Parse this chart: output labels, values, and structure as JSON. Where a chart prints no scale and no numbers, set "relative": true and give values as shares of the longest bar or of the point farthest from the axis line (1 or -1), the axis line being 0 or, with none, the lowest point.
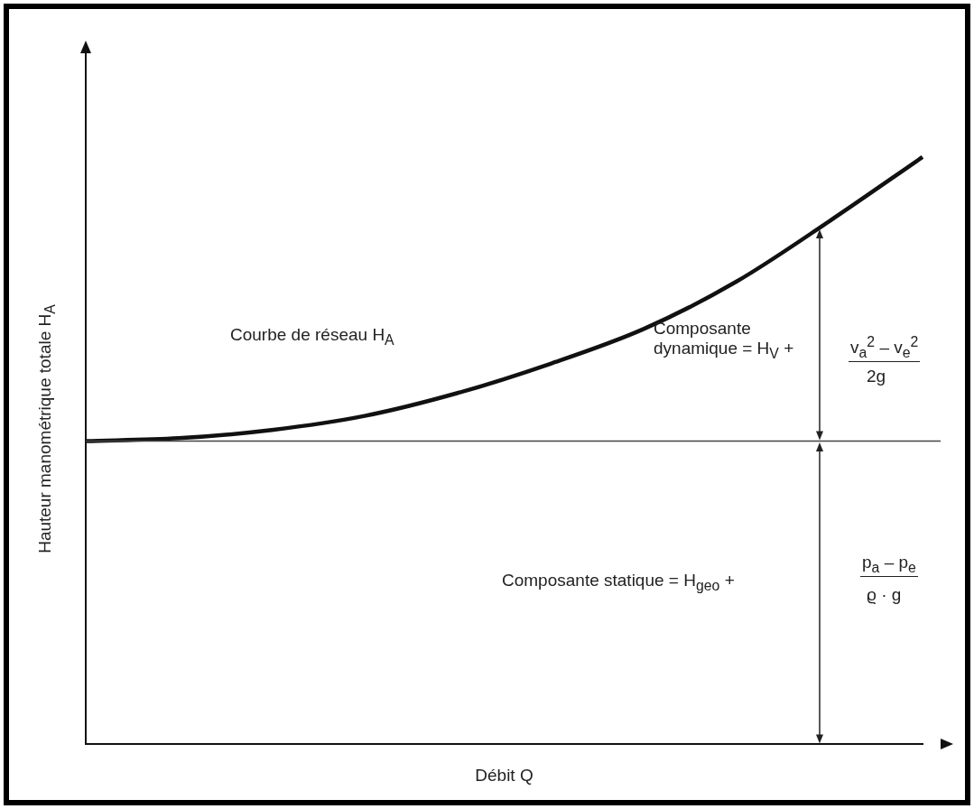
{
  "chart_data": {
    "type": "line",
    "relative": true,
    "xlabel": "Débit Q",
    "ylabel": "Hauteur manométrique totale H$_{A}$",
    "categories": [
      null,
      null,
      null,
      null,
      null,
      null,
      null,
      null,
      null,
      null
    ],
    "series": [
      {
        "color": "#111111",
        "values": [
          0.516,
          0.521,
          0.535,
          0.559,
          0.598,
          0.648,
          0.707,
          0.788,
          0.891,
          1
        ]
      }
    ],
    "ref_lines": [
      {
        "axis": "y",
        "value": 0.516,
        "color": "#444444"
      }
    ],
    "annotations": [
      "Courbe de réseau H$_{A}$",
      "Composante\ndynamique = H$_{V}$ +",
      "v$_{a}$$^{2}$ – v$_{e}$$^{2}$",
      "2g",
      "Composante statique = H$_{geo}$ +",
      "p$_{a}$ – p$_{e}$",
      "ϱ · g"
    ],
    "legend": false,
    "grid": false,
    "marker": "none",
    "line_style": "solid"
  }
}
